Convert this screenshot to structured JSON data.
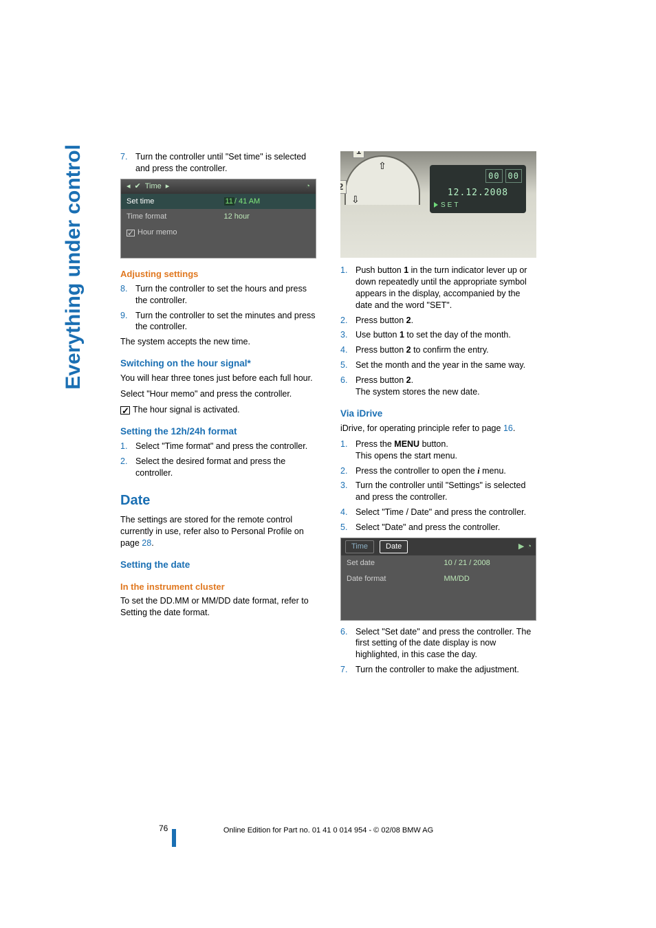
{
  "meta": {
    "section_side": "Everything under control",
    "page_number": "76",
    "footer": "Online Edition for Part no. 01 41 0 014 954  - © 02/08 BMW AG"
  },
  "left": {
    "step7": {
      "n": "7.",
      "t": "Turn the controller until \"Set time\" is selected and press the controller."
    },
    "ss_time": {
      "header": "Time",
      "row1_label": "Set time",
      "row1_value_a": "11",
      "row1_value_b": "/ 41 AM",
      "row2_label": "Time format",
      "row2_value": "12 hour",
      "row3_label": "Hour memo"
    },
    "adj_h": "Adjusting settings",
    "step8": {
      "n": "8.",
      "t": "Turn the controller to set the hours and press the controller."
    },
    "step9": {
      "n": "9.",
      "t": "Turn the controller to set the minutes and press the controller."
    },
    "accepts": "The system accepts the new time.",
    "switch_h": "Switching on the hour signal*",
    "switch_p1": "You will hear three tones just before each full hour.",
    "switch_p2": "Select \"Hour memo\" and press the controller.",
    "switch_p2b": "The hour signal is activated.",
    "fmt_h": "Setting the 12h/24h format",
    "fmt1": {
      "n": "1.",
      "t": "Select \"Time format\" and press the controller."
    },
    "fmt2": {
      "n": "2.",
      "t": "Select the desired format and press the controller."
    },
    "date_h": "Date",
    "date_p": "The settings are stored for the remote control currently in use, refer also to Personal Profile on page ",
    "date_p_ref": "28",
    "setdate_h": "Setting the date",
    "cluster_h": "In the instrument cluster",
    "cluster_p": "To set the DD.MM or MM/DD date format, refer to Setting the date format."
  },
  "right": {
    "cluster_date": "12.12.2008",
    "cluster_set": "SET",
    "dig1": "00",
    "dig2": "00",
    "n1": "1",
    "n2": "2",
    "r1": {
      "n": "1.",
      "t": "Push button 1 in the turn indicator lever up or down repeatedly until the appropriate symbol appears in the display, accompanied by the date and the word \"SET\"."
    },
    "r2": {
      "n": "2.",
      "t": "Press button 2."
    },
    "r3": {
      "n": "3.",
      "t": "Use button 1 to set the day of the month."
    },
    "r4": {
      "n": "4.",
      "t": "Press button 2 to confirm the entry."
    },
    "r5": {
      "n": "5.",
      "t": "Set the month and the year in the same way."
    },
    "r6a": {
      "n": "6.",
      "t": "Press button 2."
    },
    "r6b": "The system stores the new date.",
    "via_h": "Via iDrive",
    "via_p": "iDrive, for operating principle refer to page ",
    "via_ref": "16",
    "v1a": {
      "n": "1.",
      "t": "Press the "
    },
    "v1b": "MENU",
    "v1c": " button.",
    "v1d": "This opens the start menu.",
    "v2a": {
      "n": "2.",
      "t": "Press the controller to open the "
    },
    "v2b": "i",
    "v2c": " menu.",
    "v3": {
      "n": "3.",
      "t": "Turn the controller until \"Settings\" is selected and press the controller."
    },
    "v4": {
      "n": "4.",
      "t": "Select \"Time / Date\" and press the controller."
    },
    "v5": {
      "n": "5.",
      "t": "Select \"Date\" and press the controller."
    },
    "ss_date": {
      "tab_time": "Time",
      "tab_date": "Date",
      "row1_label": "Set date",
      "row1_value": "10 / 21 / 2008",
      "row2_label": "Date format",
      "row2_value": "MM/DD"
    },
    "v6": {
      "n": "6.",
      "t": "Select \"Set date\" and press the controller. The first setting of the date display is now highlighted, in this case the day."
    },
    "v7": {
      "n": "7.",
      "t": "Turn the controller to make the adjustment."
    }
  }
}
